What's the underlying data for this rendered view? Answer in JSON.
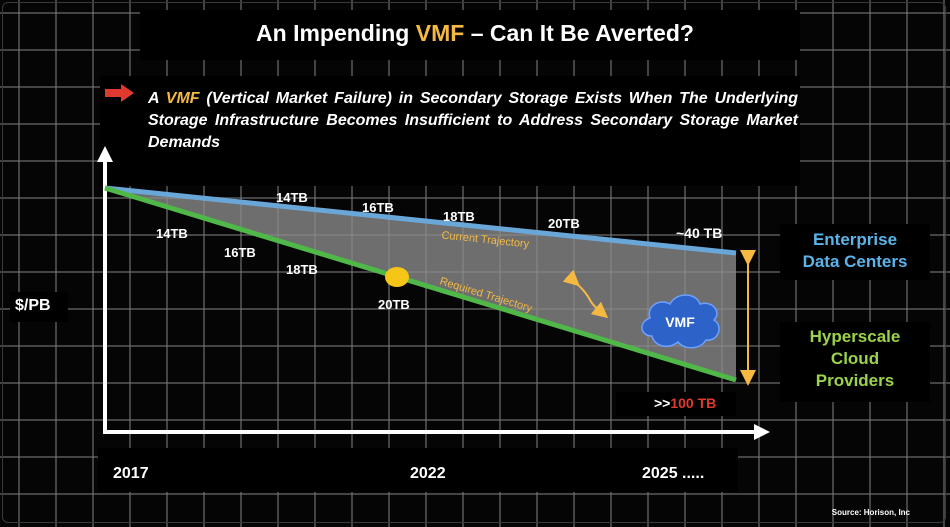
{
  "title": {
    "prefix": "An Impending ",
    "highlight": "VMF",
    "suffix": " – Can It Be Averted?"
  },
  "subtitle": {
    "prefix": "A ",
    "highlight": "VMF",
    "text": " (Vertical Market Failure) in Secondary Storage Exists When The Underlying Storage Infrastructure Becomes Insufficient to Address Secondary Storage Market Demands"
  },
  "axes": {
    "y_label": "$/PB",
    "x_ticks": [
      "2017",
      "2022",
      "2025 ....."
    ]
  },
  "current_trajectory": {
    "name": "Current Trajectory",
    "color": "#6aa7d9",
    "labels": [
      "14TB",
      "16TB",
      "18TB",
      "20TB"
    ],
    "end_label": "~40 TB"
  },
  "required_trajectory": {
    "name": "Required Trajectory",
    "color": "#4fb848",
    "labels": [
      "14TB",
      "16TB",
      "18TB",
      "20TB"
    ],
    "end_label_prefix": ">>",
    "end_label_value": "100 TB"
  },
  "gap_label": "VMF",
  "enterprise": {
    "line1": "Enterprise",
    "line2": "Data Centers",
    "color": "#5ab4ea"
  },
  "hyperscale": {
    "line1": "Hyperscale",
    "line2": "Cloud",
    "line3": "Providers",
    "color": "#9bd34a"
  },
  "source": "Source: Horison, Inc",
  "colors": {
    "accent": "#f5b942",
    "red": "#e03a2f",
    "arrow": "#f5b942"
  }
}
